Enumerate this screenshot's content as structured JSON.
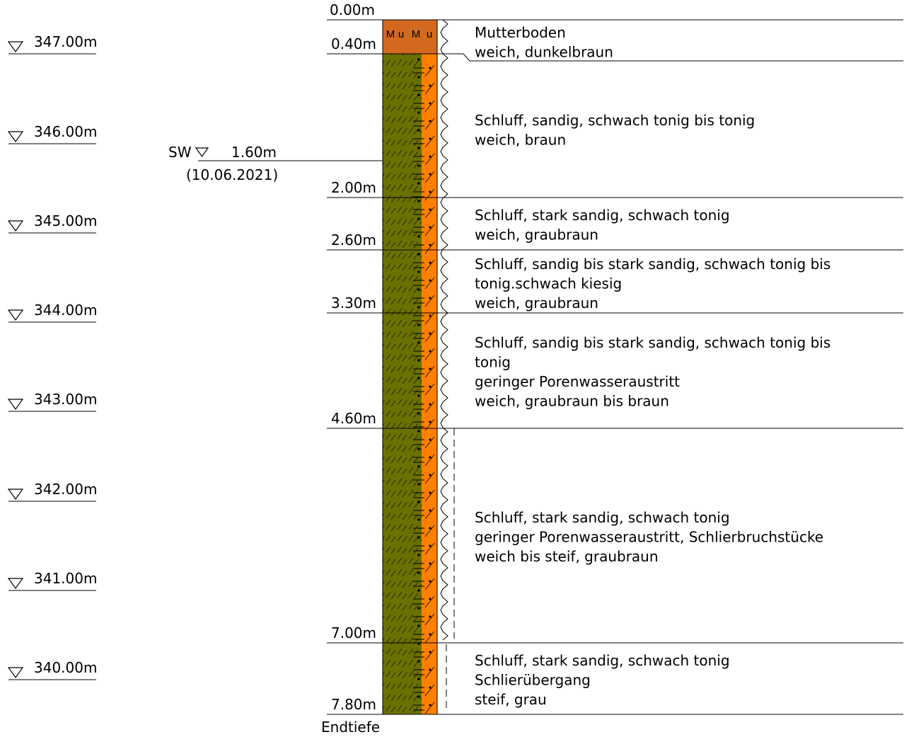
{
  "elevations": [
    "347.00m",
    "346.00m",
    "345.00m",
    "344.00m",
    "343.00m",
    "342.00m",
    "341.00m",
    "340.00m"
  ],
  "groundwater": {
    "label": "SW",
    "depth": "1.60m",
    "date": "(10.06.2021)"
  },
  "top_depth": "0.00m",
  "layers": [
    {
      "bottom": "0.40m",
      "code": [
        "M",
        "u",
        "M",
        "u"
      ],
      "lines": [
        "Mutterboden",
        "weich, dunkelbraun"
      ]
    },
    {
      "bottom": "2.00m",
      "lines": [
        "Schluff, sandig, schwach tonig bis tonig",
        "weich, braun"
      ]
    },
    {
      "bottom": "2.60m",
      "lines": [
        "Schluff, stark sandig, schwach tonig",
        "weich, graubraun"
      ]
    },
    {
      "bottom": "3.30m",
      "lines": [
        "Schluff, sandig bis stark sandig, schwach tonig bis",
        "tonig.schwach kiesig",
        "weich, graubraun"
      ]
    },
    {
      "bottom": "4.60m",
      "lines": [
        "Schluff, sandig bis stark sandig, schwach tonig bis",
        "tonig",
        "geringer Porenwasseraustritt",
        "weich, graubraun bis braun"
      ]
    },
    {
      "bottom": "7.00m",
      "lines": [
        "Schluff, stark sandig, schwach tonig",
        "geringer Porenwasseraustritt, Schlierbruchstücke",
        "weich bis steif, graubraun"
      ]
    },
    {
      "bottom": "7.80m",
      "lines": [
        "Schluff, stark sandig, schwach tonig",
        "Schlierübergang",
        "steif, grau"
      ]
    }
  ],
  "end_label": "Endtiefe",
  "colors": {
    "topsoil": "#d2691e",
    "silt": "#6b7000",
    "sand": "#ff8000",
    "line": "#000000"
  }
}
